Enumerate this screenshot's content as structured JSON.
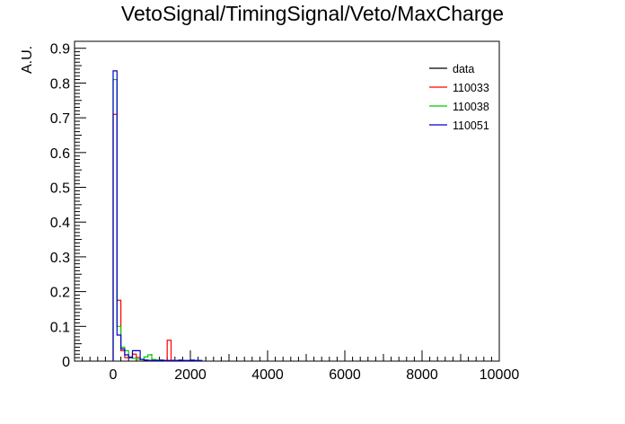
{
  "chart_data": {
    "type": "histogram",
    "title": "VetoSignal/TimingSignal/Veto/MaxCharge",
    "xlabel": "",
    "ylabel": "A.U.",
    "xlim": [
      -1000,
      10000
    ],
    "ylim": [
      0,
      0.92
    ],
    "x_ticks": [
      0,
      2000,
      4000,
      6000,
      8000,
      10000
    ],
    "x_tick_labels": [
      "0",
      "2000",
      "4000",
      "6000",
      "8000",
      "10000"
    ],
    "y_ticks": [
      0,
      0.1,
      0.2,
      0.3,
      0.4,
      0.5,
      0.6,
      0.7,
      0.8,
      0.9
    ],
    "y_tick_labels": [
      "0",
      "0.1",
      "0.2",
      "0.3",
      "0.4",
      "0.5",
      "0.6",
      "0.7",
      "0.8",
      "0.9"
    ],
    "bin_width": 100,
    "legend_position": "top-right",
    "series": [
      {
        "name": "data",
        "color": "#000000",
        "bins": []
      },
      {
        "name": "110033",
        "color": "#ff0000",
        "bins": [
          {
            "x": 0,
            "y": 0.71
          },
          {
            "x": 100,
            "y": 0.175
          },
          {
            "x": 200,
            "y": 0.03
          },
          {
            "x": 300,
            "y": 0.01
          },
          {
            "x": 400,
            "y": 0.012
          },
          {
            "x": 500,
            "y": 0.02
          },
          {
            "x": 600,
            "y": 0.01
          },
          {
            "x": 700,
            "y": 0.005
          },
          {
            "x": 800,
            "y": 0.003
          },
          {
            "x": 900,
            "y": 0.002
          },
          {
            "x": 1000,
            "y": 0.002
          },
          {
            "x": 1400,
            "y": 0.06
          },
          {
            "x": 1500,
            "y": 0.002
          }
        ]
      },
      {
        "name": "110038",
        "color": "#00cc00",
        "bins": [
          {
            "x": 0,
            "y": 0.81
          },
          {
            "x": 100,
            "y": 0.1
          },
          {
            "x": 200,
            "y": 0.04
          },
          {
            "x": 300,
            "y": 0.03
          },
          {
            "x": 400,
            "y": 0.01
          },
          {
            "x": 500,
            "y": 0.008
          },
          {
            "x": 600,
            "y": 0.005
          },
          {
            "x": 700,
            "y": 0.004
          },
          {
            "x": 800,
            "y": 0.012
          },
          {
            "x": 900,
            "y": 0.018
          },
          {
            "x": 1000,
            "y": 0.005
          },
          {
            "x": 1100,
            "y": 0.003
          }
        ]
      },
      {
        "name": "110051",
        "color": "#0000cc",
        "bins": [
          {
            "x": 0,
            "y": 0.835
          },
          {
            "x": 100,
            "y": 0.075
          },
          {
            "x": 200,
            "y": 0.035
          },
          {
            "x": 300,
            "y": 0.018
          },
          {
            "x": 400,
            "y": 0.01
          },
          {
            "x": 500,
            "y": 0.03
          },
          {
            "x": 600,
            "y": 0.03
          },
          {
            "x": 700,
            "y": 0.005
          },
          {
            "x": 800,
            "y": 0.003
          },
          {
            "x": 900,
            "y": 0.002
          },
          {
            "x": 1000,
            "y": 0.002
          },
          {
            "x": 1100,
            "y": 0.002
          },
          {
            "x": 1200,
            "y": 0.003
          },
          {
            "x": 1300,
            "y": 0.002
          },
          {
            "x": 1400,
            "y": 0.002
          },
          {
            "x": 1500,
            "y": 0.002
          },
          {
            "x": 1600,
            "y": 0.002
          },
          {
            "x": 1700,
            "y": 0.003
          },
          {
            "x": 1800,
            "y": 0.002
          },
          {
            "x": 1900,
            "y": 0.002
          },
          {
            "x": 2000,
            "y": 0.003
          },
          {
            "x": 2100,
            "y": 0.002
          },
          {
            "x": 2200,
            "y": 0.002
          }
        ]
      }
    ]
  }
}
